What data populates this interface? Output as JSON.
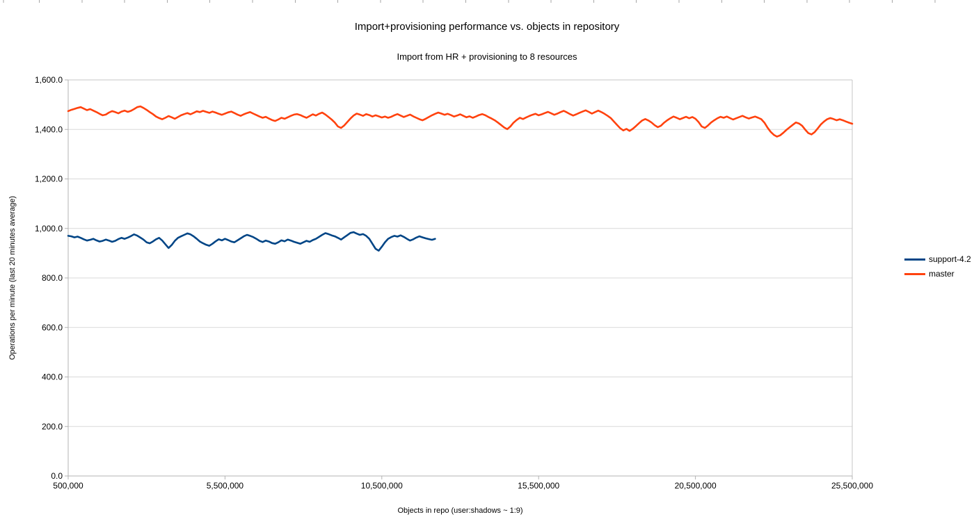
{
  "ruler": {
    "tick_color": "#a6a6a6"
  },
  "colors": {
    "gridline": "#d9d9d9",
    "axis": "#b3b3b3",
    "plot_border": "#c6c6c6",
    "text": "#000000"
  },
  "chart_data": {
    "type": "line",
    "title": "Import+provisioning performance vs. objects in repository",
    "subtitle": "Import from HR + provisioning to 8 resources",
    "xlabel": "Objects in repo (user:shadows ~ 1:9)",
    "ylabel": "Operations per minute (last 20 minutes average)",
    "xlim": [
      500000,
      25500000
    ],
    "ylim": [
      0,
      1600
    ],
    "grid": "horizontal",
    "legend_position": "right",
    "x_ticks": {
      "values": [
        500000,
        5500000,
        10500000,
        15500000,
        20500000,
        25500000
      ],
      "labels": [
        "500,000",
        "5,500,000",
        "10,500,000",
        "15,500,000",
        "20,500,000",
        "25,500,000"
      ]
    },
    "y_ticks": {
      "values": [
        0,
        200,
        400,
        600,
        800,
        1000,
        1200,
        1400,
        1600
      ],
      "labels": [
        "0.0",
        "200.0",
        "400.0",
        "600.0",
        "800.0",
        "1,000.0",
        "1,200.0",
        "1,400.0",
        "1,600.0"
      ]
    },
    "series": [
      {
        "name": "support-4.2",
        "color": "#004586",
        "x_start": 500000,
        "x_step": 100000,
        "values": [
          970,
          968,
          964,
          967,
          962,
          956,
          951,
          954,
          958,
          952,
          947,
          950,
          955,
          951,
          946,
          950,
          957,
          962,
          958,
          963,
          969,
          976,
          971,
          963,
          955,
          944,
          940,
          947,
          956,
          962,
          951,
          936,
          921,
          933,
          950,
          962,
          968,
          974,
          980,
          976,
          968,
          958,
          947,
          940,
          934,
          930,
          938,
          948,
          956,
          952,
          958,
          953,
          947,
          944,
          952,
          960,
          968,
          974,
          970,
          965,
          958,
          950,
          945,
          951,
          947,
          941,
          938,
          944,
          952,
          948,
          955,
          951,
          946,
          942,
          938,
          944,
          950,
          946,
          953,
          958,
          966,
          974,
          981,
          977,
          972,
          968,
          962,
          955,
          964,
          973,
          982,
          985,
          979,
          974,
          977,
          970,
          958,
          938,
          918,
          910,
          926,
          944,
          958,
          965,
          970,
          967,
          972,
          966,
          958,
          951,
          956,
          963,
          968,
          964,
          960,
          957,
          954,
          958
        ]
      },
      {
        "name": "master",
        "color": "#FF420E",
        "x_start": 500000,
        "x_step": 100000,
        "values": [
          1474,
          1479,
          1483,
          1487,
          1490,
          1484,
          1478,
          1482,
          1476,
          1470,
          1463,
          1457,
          1460,
          1468,
          1474,
          1470,
          1465,
          1472,
          1476,
          1471,
          1475,
          1482,
          1490,
          1493,
          1487,
          1479,
          1470,
          1462,
          1452,
          1446,
          1441,
          1447,
          1454,
          1449,
          1443,
          1450,
          1457,
          1462,
          1466,
          1461,
          1467,
          1473,
          1470,
          1475,
          1471,
          1467,
          1472,
          1468,
          1463,
          1459,
          1464,
          1469,
          1472,
          1466,
          1460,
          1455,
          1461,
          1466,
          1470,
          1464,
          1458,
          1452,
          1447,
          1451,
          1444,
          1438,
          1434,
          1440,
          1447,
          1443,
          1449,
          1455,
          1460,
          1462,
          1458,
          1452,
          1447,
          1454,
          1461,
          1456,
          1463,
          1468,
          1460,
          1450,
          1440,
          1428,
          1412,
          1406,
          1416,
          1430,
          1444,
          1456,
          1464,
          1460,
          1455,
          1462,
          1458,
          1452,
          1457,
          1453,
          1448,
          1452,
          1447,
          1451,
          1457,
          1462,
          1456,
          1450,
          1455,
          1460,
          1453,
          1447,
          1441,
          1437,
          1443,
          1450,
          1457,
          1463,
          1468,
          1464,
          1459,
          1463,
          1458,
          1452,
          1456,
          1461,
          1455,
          1449,
          1453,
          1447,
          1452,
          1458,
          1462,
          1457,
          1450,
          1444,
          1437,
          1428,
          1418,
          1408,
          1401,
          1412,
          1427,
          1438,
          1447,
          1442,
          1448,
          1454,
          1459,
          1463,
          1457,
          1461,
          1466,
          1471,
          1465,
          1459,
          1464,
          1470,
          1475,
          1469,
          1462,
          1456,
          1461,
          1467,
          1472,
          1477,
          1471,
          1464,
          1470,
          1476,
          1470,
          1463,
          1455,
          1446,
          1432,
          1418,
          1405,
          1396,
          1402,
          1394,
          1402,
          1413,
          1425,
          1436,
          1442,
          1436,
          1428,
          1417,
          1409,
          1415,
          1427,
          1437,
          1445,
          1452,
          1447,
          1441,
          1446,
          1451,
          1445,
          1450,
          1443,
          1430,
          1412,
          1406,
          1416,
          1428,
          1437,
          1445,
          1451,
          1447,
          1452,
          1446,
          1440,
          1445,
          1450,
          1455,
          1449,
          1444,
          1448,
          1452,
          1447,
          1441,
          1427,
          1407,
          1390,
          1378,
          1371,
          1376,
          1386,
          1398,
          1408,
          1418,
          1428,
          1424,
          1415,
          1399,
          1385,
          1380,
          1389,
          1404,
          1420,
          1432,
          1441,
          1446,
          1442,
          1437,
          1441,
          1437,
          1432,
          1427,
          1423
        ]
      }
    ]
  }
}
